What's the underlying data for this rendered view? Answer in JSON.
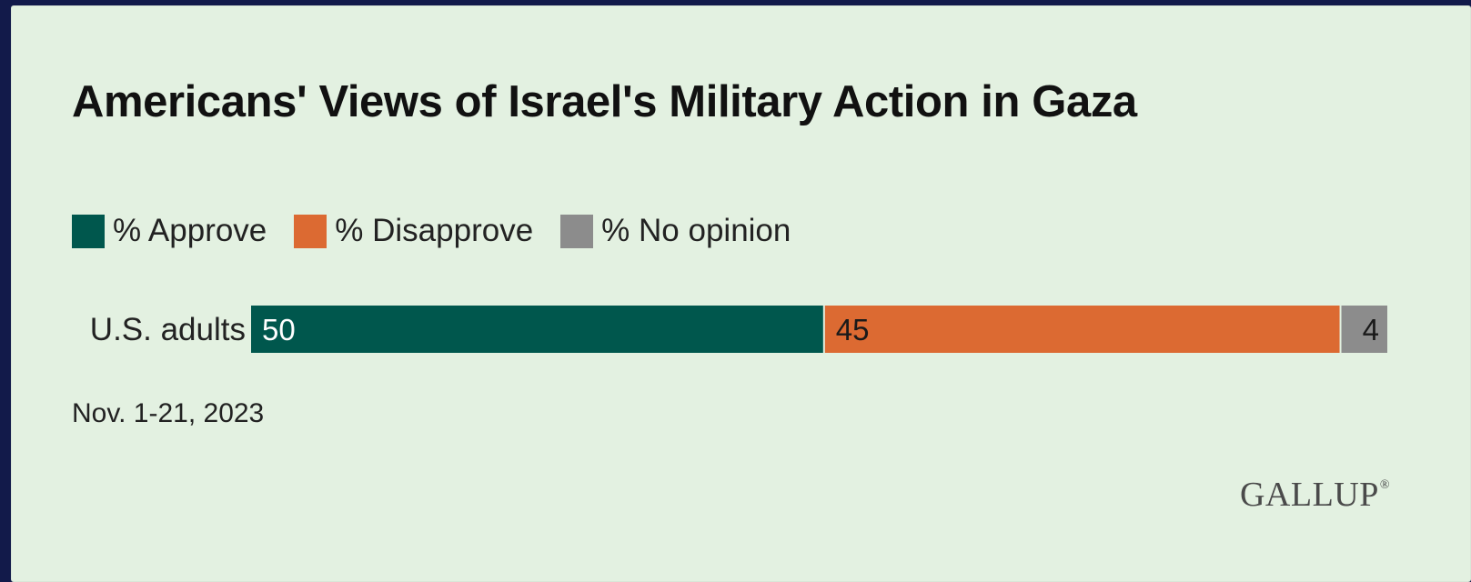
{
  "chart_data": {
    "type": "bar",
    "orientation": "horizontal",
    "stacked": true,
    "title": "Americans' Views of Israel's Military Action in Gaza",
    "categories": [
      "U.S. adults"
    ],
    "series": [
      {
        "name": "% Approve",
        "values": [
          50
        ],
        "color": "#00574d",
        "label_color": "#ffffff"
      },
      {
        "name": "% Disapprove",
        "values": [
          45
        ],
        "color": "#dc6a32",
        "label_color": "#1a1a1a"
      },
      {
        "name": "% No opinion",
        "values": [
          4
        ],
        "color": "#8c8c8c",
        "label_color": "#1a1a1a"
      }
    ],
    "xlim": [
      0,
      99
    ],
    "grid": false,
    "legend_position": "top-left",
    "note": "Nov. 1-21, 2023"
  },
  "brand": {
    "logo_text": "GALLUP",
    "logo_mark": "®"
  },
  "colors": {
    "background": "#e3f1e1",
    "border": "#121a4a"
  }
}
